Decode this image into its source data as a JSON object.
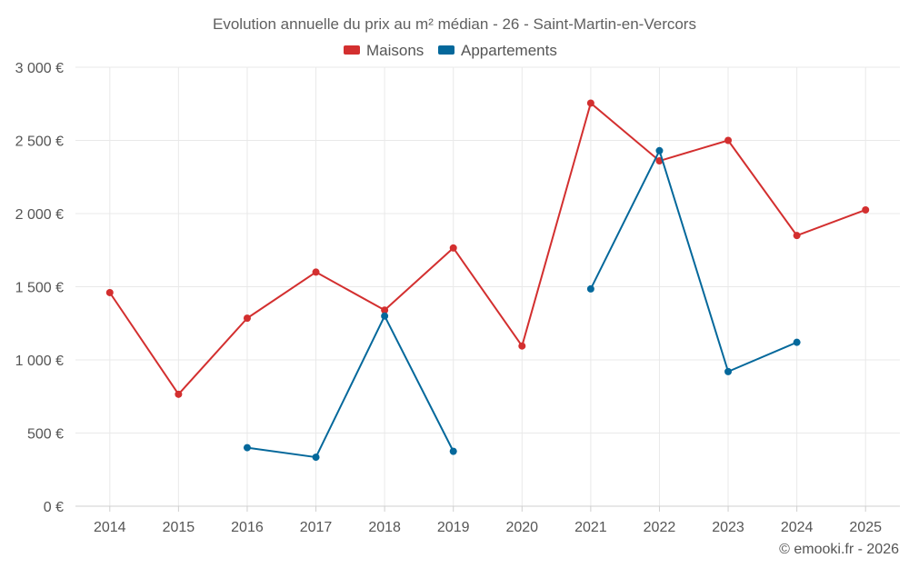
{
  "chart_data": {
    "type": "line",
    "title": "Evolution annuelle du prix au m² médian - 26 - Saint-Martin-en-Vercors",
    "categories": [
      "2014",
      "2015",
      "2016",
      "2017",
      "2018",
      "2019",
      "2020",
      "2021",
      "2022",
      "2023",
      "2024",
      "2025"
    ],
    "ylim": [
      0,
      3000
    ],
    "yticks": [
      0,
      500,
      1000,
      1500,
      2000,
      2500,
      3000
    ],
    "ytick_labels": [
      "0 €",
      "500 €",
      "1 000 €",
      "1 500 €",
      "2 000 €",
      "2 500 €",
      "3 000 €"
    ],
    "grid": true,
    "legend_position": "top-center",
    "series": [
      {
        "name": "Maisons",
        "color": "#d32f2f",
        "values": [
          1460,
          765,
          1285,
          1600,
          1340,
          1765,
          1095,
          2755,
          2360,
          2500,
          1850,
          2025
        ]
      },
      {
        "name": "Appartements",
        "color": "#04689b",
        "values": [
          null,
          null,
          400,
          335,
          1300,
          375,
          null,
          1485,
          2430,
          920,
          1120,
          null
        ]
      }
    ],
    "credit": "© emooki.fr - 2026"
  }
}
